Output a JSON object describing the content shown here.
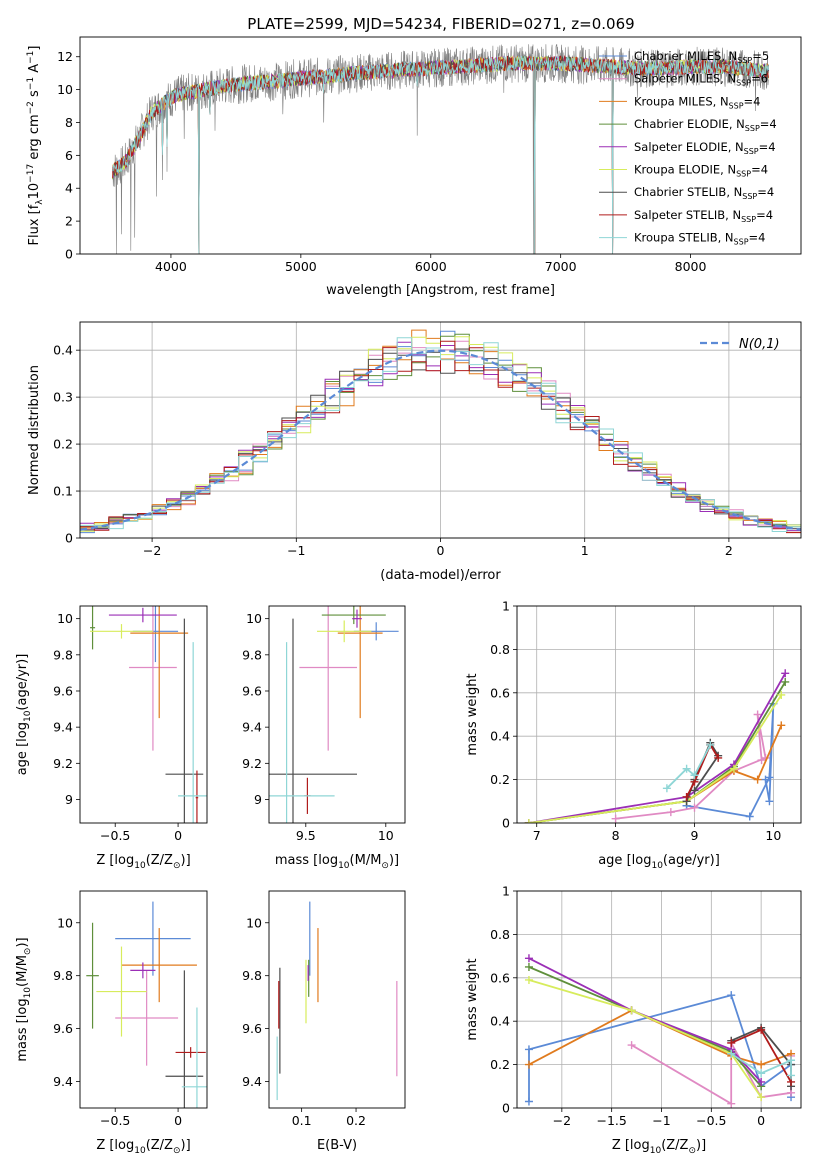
{
  "figure": {
    "title": "PLATE=2599, MJD=54234, FIBERID=0271, z=0.069"
  },
  "colors": {
    "chabrier_miles": "#5b8ad6",
    "salpeter_miles": "#e08ac3",
    "kroupa_miles": "#e07b1e",
    "chabrier_elodie": "#5f8f3b",
    "salpeter_elodie": "#9b2fb6",
    "kroupa_elodie": "#d7ec5c",
    "chabrier_stelib": "#4d4d4d",
    "salpeter_stelib": "#b01c1c",
    "kroupa_stelib": "#8fd6d6",
    "data": "#7f7f7f",
    "normal": "#5b8ad6"
  },
  "chart_data": [
    {
      "id": "spectrum",
      "type": "line",
      "xlabel": "wavelength [Angstrom, rest frame]",
      "ylabel": "Flux [f",
      "ylabel_parts": [
        "Flux [f",
        "λ",
        "10",
        "−17",
        " erg cm",
        "−2",
        " s",
        "−1",
        " A",
        "−1",
        "]"
      ],
      "xlim": [
        3300,
        8850
      ],
      "ylim": [
        0,
        13.2
      ],
      "xticks": [
        4000,
        5000,
        6000,
        7000,
        8000
      ],
      "yticks": [
        0,
        2,
        4,
        6,
        8,
        10,
        12
      ],
      "grid": false,
      "legend_position": "right",
      "legend": [
        {
          "label": "Chabrier MILES, N",
          "sub": "SSP",
          "val": "=5",
          "color_key": "chabrier_miles"
        },
        {
          "label": "Salpeter MILES, N",
          "sub": "SSP",
          "val": "=6",
          "color_key": "salpeter_miles"
        },
        {
          "label": "Kroupa MILES, N",
          "sub": "SSP",
          "val": "=4",
          "color_key": "kroupa_miles"
        },
        {
          "label": "Chabrier ELODIE, N",
          "sub": "SSP",
          "val": "=4",
          "color_key": "chabrier_elodie"
        },
        {
          "label": "Salpeter ELODIE, N",
          "sub": "SSP",
          "val": "=4",
          "color_key": "salpeter_elodie"
        },
        {
          "label": "Kroupa ELODIE, N",
          "sub": "SSP",
          "val": "=4",
          "color_key": "kroupa_elodie"
        },
        {
          "label": "Chabrier STELIB, N",
          "sub": "SSP",
          "val": "=4",
          "color_key": "chabrier_stelib"
        },
        {
          "label": "Salpeter STELIB, N",
          "sub": "SSP",
          "val": "=4",
          "color_key": "salpeter_stelib"
        },
        {
          "label": "Kroupa STELIB, N",
          "sub": "SSP",
          "val": "=4",
          "color_key": "kroupa_stelib"
        }
      ],
      "continuum": [
        [
          3550,
          5.0
        ],
        [
          3650,
          5.6
        ],
        [
          3750,
          7.0
        ],
        [
          3850,
          8.6
        ],
        [
          3950,
          9.2
        ],
        [
          4050,
          9.7
        ],
        [
          4200,
          9.9
        ],
        [
          4400,
          10.2
        ],
        [
          4600,
          10.4
        ],
        [
          4800,
          10.5
        ],
        [
          5000,
          10.7
        ],
        [
          5200,
          10.8
        ],
        [
          5400,
          11.0
        ],
        [
          5600,
          11.1
        ],
        [
          5800,
          11.2
        ],
        [
          6000,
          11.3
        ],
        [
          6200,
          11.4
        ],
        [
          6400,
          11.5
        ],
        [
          6600,
          11.6
        ],
        [
          6800,
          11.6
        ],
        [
          7000,
          11.6
        ],
        [
          7200,
          11.5
        ],
        [
          7400,
          11.4
        ],
        [
          7600,
          11.3
        ],
        [
          7800,
          11.3
        ],
        [
          8000,
          11.4
        ],
        [
          8200,
          11.4
        ],
        [
          8400,
          11.3
        ],
        [
          8600,
          11.1
        ]
      ],
      "data_dips": [
        [
          3580,
          0.0
        ],
        [
          3620,
          1.2
        ],
        [
          3690,
          0.2
        ],
        [
          3720,
          1.0
        ],
        [
          3890,
          3.5
        ],
        [
          3935,
          4.5
        ],
        [
          3970,
          5.0
        ],
        [
          4102,
          7.0
        ],
        [
          4215,
          0.0
        ],
        [
          4340,
          7.5
        ],
        [
          4861,
          8.5
        ],
        [
          5175,
          8.0
        ],
        [
          5895,
          7.2
        ],
        [
          6563,
          9.8
        ],
        [
          6790,
          0.0
        ],
        [
          7400,
          0.0
        ],
        [
          7590,
          9.5
        ],
        [
          8500,
          8.7
        ]
      ],
      "model_dips": [
        [
          3935,
          6.0
        ],
        [
          3970,
          6.5
        ],
        [
          4215,
          0.0
        ],
        [
          4300,
          8.5
        ],
        [
          5175,
          9.8
        ],
        [
          5895,
          10.2
        ],
        [
          6800,
          0.0
        ],
        [
          7400,
          0.0
        ]
      ]
    },
    {
      "id": "residuals",
      "type": "histogram",
      "xlabel": "(data-model)/error",
      "ylabel": "Normed distribution",
      "xlim": [
        -2.5,
        2.5
      ],
      "ylim": [
        0,
        0.46
      ],
      "xticks": [
        -2,
        -1,
        0,
        1,
        2
      ],
      "yticks": [
        0.0,
        0.1,
        0.2,
        0.3,
        0.4
      ],
      "grid": true,
      "legend_position": "top-right",
      "normal_label": "N(0,1)",
      "bin_width": 0.1
    },
    {
      "id": "age_vs_Z",
      "type": "errorbar",
      "xlabel": "Z [log10(Z/Z⊙)]",
      "xlabel_parts": [
        "Z [log",
        "10",
        "(Z/Z",
        "⊙",
        ")]"
      ],
      "ylabel": "age [log10(age/yr)]",
      "ylabel_parts": [
        "age  [log",
        "10",
        "(age/yr)]"
      ],
      "xlim": [
        -0.78,
        0.23
      ],
      "ylim": [
        8.87,
        10.07
      ],
      "xticks": [
        -0.5,
        0.0
      ],
      "yticks": [
        9.0,
        9.2,
        9.4,
        9.6,
        9.8,
        10.0
      ],
      "points": [
        {
          "color_key": "chabrier_miles",
          "x": -0.18,
          "xerr": 0.18,
          "y": 9.93,
          "yerr": 0.17
        },
        {
          "color_key": "salpeter_miles",
          "x": -0.2,
          "xerr": 0.19,
          "y": 9.73,
          "yerr": 0.46
        },
        {
          "color_key": "kroupa_miles",
          "x": -0.15,
          "xerr": 0.23,
          "y": 9.92,
          "yerr": 0.47
        },
        {
          "color_key": "chabrier_elodie",
          "x": -0.68,
          "xerr": 0.02,
          "y": 9.95,
          "yerr": 0.12
        },
        {
          "color_key": "salpeter_elodie",
          "x": -0.28,
          "xerr": 0.27,
          "y": 10.02,
          "yerr": 0.04
        },
        {
          "color_key": "kroupa_elodie",
          "x": -0.45,
          "xerr": 0.25,
          "y": 9.93,
          "yerr": 0.04
        },
        {
          "color_key": "chabrier_stelib",
          "x": 0.05,
          "xerr": 0.15,
          "y": 9.14,
          "yerr": 0.86
        },
        {
          "color_key": "salpeter_stelib",
          "x": 0.15,
          "xerr": 0.01,
          "y": 9.01,
          "yerr": 0.15
        },
        {
          "color_key": "kroupa_stelib",
          "x": 0.12,
          "xerr": 0.12,
          "y": 9.02,
          "yerr": 0.85
        }
      ]
    },
    {
      "id": "age_vs_mass",
      "type": "errorbar",
      "xlabel": "mass [log10(M/M⊙)]",
      "xlabel_parts": [
        "mass [log",
        "10",
        "(M/M",
        "⊙",
        ")]"
      ],
      "ylabel": "",
      "xlim": [
        9.27,
        10.12
      ],
      "ylim": [
        8.87,
        10.07
      ],
      "xticks": [
        9.5,
        10.0
      ],
      "yticks": [
        9.0,
        9.2,
        9.4,
        9.6,
        9.8,
        10.0
      ],
      "points": [
        {
          "color_key": "chabrier_miles",
          "x": 9.94,
          "xerr": 0.14,
          "y": 9.93,
          "yerr": 0.05
        },
        {
          "color_key": "salpeter_miles",
          "x": 9.64,
          "xerr": 0.18,
          "y": 9.73,
          "yerr": 0.46
        },
        {
          "color_key": "kroupa_miles",
          "x": 9.84,
          "xerr": 0.14,
          "y": 9.92,
          "yerr": 0.47
        },
        {
          "color_key": "chabrier_elodie",
          "x": 9.8,
          "xerr": 0.2,
          "y": 10.02,
          "yerr": 0.05
        },
        {
          "color_key": "salpeter_elodie",
          "x": 9.82,
          "xerr": 0.03,
          "y": 10.0,
          "yerr": 0.05
        },
        {
          "color_key": "kroupa_elodie",
          "x": 9.74,
          "xerr": 0.17,
          "y": 9.93,
          "yerr": 0.06
        },
        {
          "color_key": "chabrier_stelib",
          "x": 9.42,
          "xerr": 0.4,
          "y": 9.14,
          "yerr": 0.86
        },
        {
          "color_key": "salpeter_stelib",
          "x": 9.51,
          "xerr": 0.02,
          "y": 9.02,
          "yerr": 0.1
        },
        {
          "color_key": "kroupa_stelib",
          "x": 9.38,
          "xerr": 0.3,
          "y": 9.02,
          "yerr": 0.85
        }
      ]
    },
    {
      "id": "massweight_vs_age",
      "type": "line",
      "xlabel": "age [log10(age/yr)]",
      "xlabel_parts": [
        "age  [log",
        "10",
        "(age/yr)]"
      ],
      "ylabel": "mass weight",
      "xlim": [
        6.75,
        10.35
      ],
      "ylim": [
        0,
        1.0
      ],
      "xticks": [
        7,
        8,
        9,
        10
      ],
      "yticks": [
        0.0,
        0.2,
        0.4,
        0.6,
        0.8,
        1.0
      ],
      "grid": true,
      "series": [
        {
          "color_key": "chabrier_miles",
          "x": [
            8.9,
            8.9,
            9.7,
            9.95,
            10.0,
            9.95,
            9.9
          ],
          "y": [
            0.08,
            0.08,
            0.03,
            0.21,
            0.55,
            0.1,
            0.2
          ]
        },
        {
          "color_key": "salpeter_miles",
          "x": [
            8.0,
            8.7,
            9.0,
            9.5,
            9.9,
            9.8,
            9.85
          ],
          "y": [
            0.02,
            0.05,
            0.07,
            0.24,
            0.3,
            0.5,
            0.29
          ]
        },
        {
          "color_key": "kroupa_miles",
          "x": [
            6.9,
            8.9,
            9.5,
            9.8,
            10.1
          ],
          "y": [
            0.0,
            0.1,
            0.24,
            0.2,
            0.45
          ]
        },
        {
          "color_key": "chabrier_elodie",
          "x": [
            6.9,
            8.9,
            9.5,
            10.15
          ],
          "y": [
            0.0,
            0.1,
            0.26,
            0.65
          ]
        },
        {
          "color_key": "salpeter_elodie",
          "x": [
            6.9,
            8.9,
            9.5,
            10.15
          ],
          "y": [
            0.0,
            0.12,
            0.27,
            0.69
          ]
        },
        {
          "color_key": "kroupa_elodie",
          "x": [
            6.9,
            8.9,
            9.5,
            10.1
          ],
          "y": [
            0.0,
            0.1,
            0.25,
            0.59
          ]
        },
        {
          "color_key": "chabrier_stelib",
          "x": [
            8.9,
            9.0,
            9.2,
            9.3,
            9.0
          ],
          "y": [
            0.1,
            0.2,
            0.37,
            0.31,
            0.15
          ]
        },
        {
          "color_key": "salpeter_stelib",
          "x": [
            8.9,
            9.0,
            9.2,
            9.3
          ],
          "y": [
            0.12,
            0.19,
            0.36,
            0.3
          ]
        },
        {
          "color_key": "kroupa_stelib",
          "x": [
            8.65,
            8.9,
            9.0,
            9.2
          ],
          "y": [
            0.16,
            0.25,
            0.22,
            0.36
          ]
        }
      ]
    },
    {
      "id": "mass_vs_Z",
      "type": "errorbar",
      "xlabel": "Z [log10(Z/Z⊙)]",
      "xlabel_parts": [
        "Z [log",
        "10",
        "(Z/Z",
        "⊙",
        ")]"
      ],
      "ylabel": "mass [log10(M/M⊙)]",
      "ylabel_parts": [
        "mass [log",
        "10",
        "(M/M",
        "⊙",
        ")]"
      ],
      "xlim": [
        -0.78,
        0.23
      ],
      "ylim": [
        9.3,
        10.12
      ],
      "xticks": [
        -0.5,
        0.0
      ],
      "yticks": [
        9.4,
        9.6,
        9.8,
        10.0
      ],
      "points": [
        {
          "color_key": "chabrier_miles",
          "x": -0.2,
          "xerr": 0.3,
          "y": 9.94,
          "yerr": 0.14
        },
        {
          "color_key": "salpeter_miles",
          "x": -0.25,
          "xerr": 0.25,
          "y": 9.64,
          "yerr": 0.18
        },
        {
          "color_key": "kroupa_miles",
          "x": -0.15,
          "xerr": 0.3,
          "y": 9.84,
          "yerr": 0.14
        },
        {
          "color_key": "chabrier_elodie",
          "x": -0.68,
          "xerr": 0.05,
          "y": 9.8,
          "yerr": 0.2
        },
        {
          "color_key": "salpeter_elodie",
          "x": -0.28,
          "xerr": 0.1,
          "y": 9.82,
          "yerr": 0.03
        },
        {
          "color_key": "kroupa_elodie",
          "x": -0.45,
          "xerr": 0.2,
          "y": 9.74,
          "yerr": 0.17
        },
        {
          "color_key": "chabrier_stelib",
          "x": 0.05,
          "xerr": 0.15,
          "y": 9.42,
          "yerr": 0.4
        },
        {
          "color_key": "salpeter_stelib",
          "x": 0.1,
          "xerr": 0.12,
          "y": 9.51,
          "yerr": 0.02
        },
        {
          "color_key": "kroupa_stelib",
          "x": 0.15,
          "xerr": 0.12,
          "y": 9.38,
          "yerr": 0.3
        }
      ]
    },
    {
      "id": "mass_vs_EBV",
      "type": "errorbar",
      "xlabel": "E(B-V)",
      "ylabel": "",
      "xlim": [
        0.04,
        0.29
      ],
      "ylim": [
        9.3,
        10.12
      ],
      "xticks": [
        0.1,
        0.2
      ],
      "yticks": [
        9.4,
        9.6,
        9.8,
        10.0
      ],
      "points": [
        {
          "color_key": "chabrier_miles",
          "x": 0.115,
          "xerr": 0.0,
          "y": 9.94,
          "yerr": 0.14
        },
        {
          "color_key": "salpeter_miles",
          "x": 0.275,
          "xerr": 0.0,
          "y": 9.6,
          "yerr": 0.18
        },
        {
          "color_key": "kroupa_miles",
          "x": 0.13,
          "xerr": 0.0,
          "y": 9.84,
          "yerr": 0.14
        },
        {
          "color_key": "chabrier_elodie",
          "x": 0.113,
          "xerr": 0.0,
          "y": 9.79,
          "yerr": 0.07
        },
        {
          "color_key": "salpeter_elodie",
          "x": 0.112,
          "xerr": 0.0,
          "y": 9.81,
          "yerr": 0.03
        },
        {
          "color_key": "kroupa_elodie",
          "x": 0.108,
          "xerr": 0.0,
          "y": 9.74,
          "yerr": 0.12
        },
        {
          "color_key": "chabrier_stelib",
          "x": 0.06,
          "xerr": 0.0,
          "y": 9.63,
          "yerr": 0.2
        },
        {
          "color_key": "salpeter_stelib",
          "x": 0.058,
          "xerr": 0.0,
          "y": 9.69,
          "yerr": 0.09
        },
        {
          "color_key": "kroupa_stelib",
          "x": 0.055,
          "xerr": 0.0,
          "y": 9.45,
          "yerr": 0.12
        }
      ]
    },
    {
      "id": "massweight_vs_Z",
      "type": "line",
      "xlabel": "Z [log10(Z/Z⊙)]",
      "xlabel_parts": [
        "Z [log",
        "10",
        "(Z/Z",
        "⊙",
        ")]"
      ],
      "ylabel": "mass weight",
      "xlim": [
        -2.45,
        0.4
      ],
      "ylim": [
        0,
        1.0
      ],
      "xticks": [
        -2.0,
        -1.5,
        -1.0,
        -0.5,
        0.0
      ],
      "yticks": [
        0.0,
        0.2,
        0.4,
        0.6,
        0.8,
        1.0
      ],
      "grid": true,
      "series": [
        {
          "color_key": "chabrier_miles",
          "x": [
            -2.33,
            -2.33,
            -0.3,
            0.0,
            0.3,
            0.3
          ],
          "y": [
            0.03,
            0.27,
            0.52,
            0.1,
            0.2,
            0.05
          ]
        },
        {
          "color_key": "salpeter_miles",
          "x": [
            -1.3,
            -0.3,
            -0.3,
            0.0,
            0.3,
            0.3
          ],
          "y": [
            0.29,
            0.02,
            0.3,
            0.05,
            0.07,
            0.24
          ]
        },
        {
          "color_key": "kroupa_miles",
          "x": [
            -2.33,
            -1.3,
            -0.3,
            0.0,
            0.3
          ],
          "y": [
            0.2,
            0.45,
            0.24,
            0.2,
            0.25
          ]
        },
        {
          "color_key": "chabrier_elodie",
          "x": [
            -2.33,
            -1.3,
            -0.3,
            0.0
          ],
          "y": [
            0.65,
            0.45,
            0.26,
            0.1
          ]
        },
        {
          "color_key": "salpeter_elodie",
          "x": [
            -2.33,
            -1.3,
            -0.3,
            0.0
          ],
          "y": [
            0.69,
            0.45,
            0.27,
            0.12
          ]
        },
        {
          "color_key": "kroupa_elodie",
          "x": [
            -2.33,
            -1.3,
            -0.3,
            0.0
          ],
          "y": [
            0.59,
            0.45,
            0.25,
            0.05
          ]
        },
        {
          "color_key": "chabrier_stelib",
          "x": [
            -0.3,
            0.0,
            0.3,
            0.3
          ],
          "y": [
            0.31,
            0.37,
            0.2,
            0.1
          ]
        },
        {
          "color_key": "salpeter_stelib",
          "x": [
            -0.3,
            0.0,
            0.3
          ],
          "y": [
            0.3,
            0.36,
            0.12
          ]
        },
        {
          "color_key": "kroupa_stelib",
          "x": [
            -0.3,
            0.0,
            0.3,
            0.3
          ],
          "y": [
            0.25,
            0.16,
            0.22,
            0.15
          ]
        }
      ]
    }
  ]
}
